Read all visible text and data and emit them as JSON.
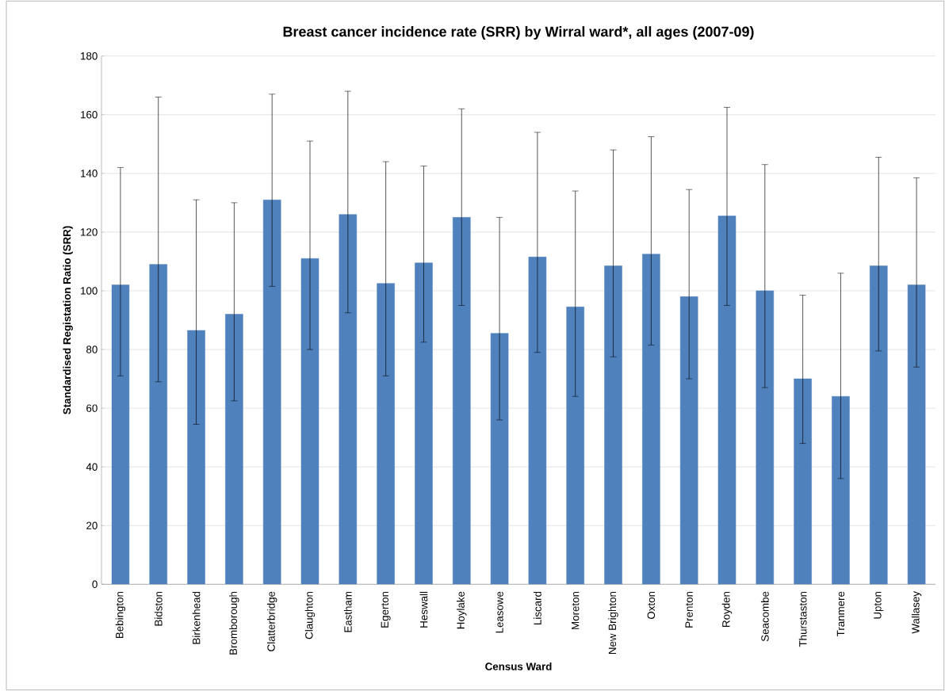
{
  "chart_data": {
    "type": "bar",
    "title": "Breast cancer incidence rate (SRR) by Wirral ward*, all ages (2007-09)",
    "xlabel": "Census Ward",
    "ylabel": "Standardised Registation Ratio (SRR)",
    "categories": [
      "Bebington",
      "Bidston",
      "Birkenhead",
      "Bromborough",
      "Clatterbridge",
      "Claughton",
      "Eastham",
      "Egerton",
      "Heswall",
      "Hoylake",
      "Leasowe",
      "Liscard",
      "Moreton",
      "New Brighton",
      "Oxton",
      "Prenton",
      "Royden",
      "Seacombe",
      "Thurstaston",
      "Tranmere",
      "Upton",
      "Wallasey"
    ],
    "values": [
      102,
      109,
      86.5,
      92,
      131,
      111,
      126,
      102.5,
      109.5,
      125,
      85.5,
      111.5,
      94.5,
      108.5,
      112.5,
      98,
      125.5,
      100,
      70,
      64,
      108.5,
      102
    ],
    "errors": [
      [
        71,
        142
      ],
      [
        69,
        166
      ],
      [
        54.5,
        131
      ],
      [
        62.5,
        130
      ],
      [
        101.5,
        167
      ],
      [
        80,
        151
      ],
      [
        92.5,
        168
      ],
      [
        71,
        144
      ],
      [
        82.5,
        142.5
      ],
      [
        95,
        162
      ],
      [
        56,
        125
      ],
      [
        79,
        154
      ],
      [
        64,
        134
      ],
      [
        77.5,
        148
      ],
      [
        81.5,
        152.5
      ],
      [
        70,
        134.5
      ],
      [
        95,
        162.5
      ],
      [
        67,
        143
      ],
      [
        48,
        98.5
      ],
      [
        36,
        106
      ],
      [
        79.5,
        145.5
      ],
      [
        74,
        138.5
      ]
    ],
    "color": "#4f81bd",
    "ylim": [
      0,
      180
    ],
    "yticks": [
      0,
      20,
      40,
      60,
      80,
      100,
      120,
      140,
      160,
      180
    ],
    "grid": "y"
  }
}
